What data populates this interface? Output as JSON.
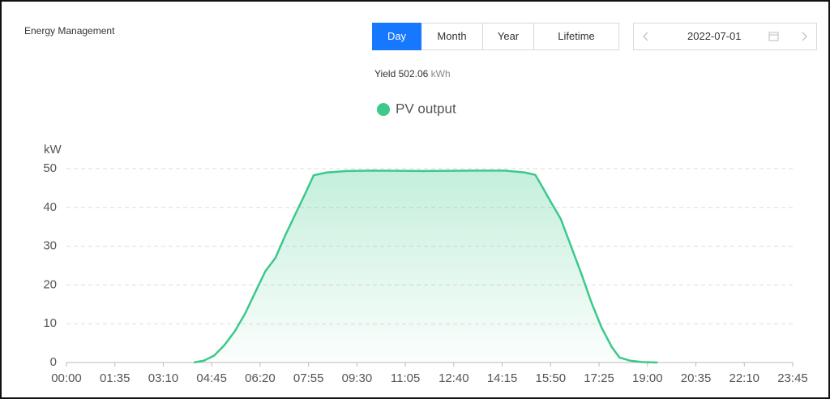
{
  "header": {
    "title": "Energy Management"
  },
  "tabs": {
    "items": [
      "Day",
      "Month",
      "Year",
      "Lifetime"
    ],
    "selected": "Day"
  },
  "date_picker": {
    "date": "2022-07-01"
  },
  "yield": {
    "label": "Yield",
    "value": 502.06,
    "unit": "kWh"
  },
  "chart_data": {
    "type": "area",
    "y_label": "kW",
    "x": [
      250,
      270,
      290,
      310,
      330,
      350,
      370,
      390,
      410,
      430,
      450,
      470,
      485,
      510,
      550,
      600,
      700,
      800,
      860,
      900,
      920,
      935,
      950,
      970,
      990,
      1010,
      1030,
      1050,
      1070,
      1085,
      1105,
      1130,
      1160
    ],
    "series": [
      {
        "name": "PV output",
        "color": "#3cc98a",
        "values": [
          0,
          0.5,
          1.8,
          4.5,
          8,
          12.5,
          18,
          23.5,
          27,
          33,
          38.5,
          44,
          48.3,
          49,
          49.4,
          49.5,
          49.4,
          49.5,
          49.5,
          49,
          48.4,
          45,
          41.5,
          37,
          30,
          23,
          15.5,
          9,
          4,
          1.3,
          0.5,
          0.1,
          0
        ]
      }
    ],
    "xlim": [
      0,
      1425
    ],
    "xticks": [
      {
        "value": 0,
        "label": "00:00"
      },
      {
        "value": 95,
        "label": "01:35"
      },
      {
        "value": 190,
        "label": "03:10"
      },
      {
        "value": 285,
        "label": "04:45"
      },
      {
        "value": 380,
        "label": "06:20"
      },
      {
        "value": 475,
        "label": "07:55"
      },
      {
        "value": 570,
        "label": "09:30"
      },
      {
        "value": 665,
        "label": "11:05"
      },
      {
        "value": 760,
        "label": "12:40"
      },
      {
        "value": 855,
        "label": "14:15"
      },
      {
        "value": 950,
        "label": "15:50"
      },
      {
        "value": 1045,
        "label": "17:25"
      },
      {
        "value": 1140,
        "label": "19:00"
      },
      {
        "value": 1235,
        "label": "20:35"
      },
      {
        "value": 1330,
        "label": "22:10"
      },
      {
        "value": 1425,
        "label": "23:45"
      }
    ],
    "ylim": [
      0,
      50
    ],
    "yticks": [
      0,
      10,
      20,
      30,
      40,
      50
    ],
    "grid": true
  }
}
